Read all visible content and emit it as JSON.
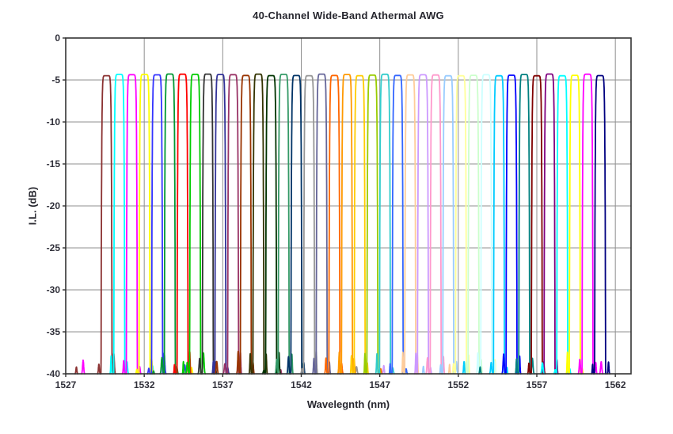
{
  "chart_data": {
    "type": "line",
    "title": "40-Channel Wide-Band Athermal AWG",
    "xlabel": "Wavelegnth (nm)",
    "ylabel": "I.L. (dB)",
    "xlim": [
      1527,
      1563
    ],
    "ylim": [
      -40,
      0
    ],
    "x_ticks": [
      1527,
      1532,
      1537,
      1542,
      1547,
      1552,
      1557,
      1562
    ],
    "y_ticks": [
      0,
      -5,
      -10,
      -15,
      -20,
      -25,
      -30,
      -35,
      -40
    ],
    "grid": true,
    "legend": "none",
    "colors": {
      "background": "#ffffff",
      "grid": "#8f8f8f",
      "axis": "#333333",
      "text": "#30303a"
    },
    "channel_count": 40,
    "channel_spacing_nm": 0.806,
    "passband": {
      "peak_il_db": -4.4,
      "floor_db": -40,
      "half_width_at_floor_nm": 0.35,
      "supergauss_exponent": 10
    },
    "channels": [
      {
        "ch": 1,
        "center_nm": 1529.6,
        "color": "#8B3232"
      },
      {
        "ch": 2,
        "center_nm": 1530.41,
        "color": "#00FFFF"
      },
      {
        "ch": 3,
        "center_nm": 1531.21,
        "color": "#FF00FF"
      },
      {
        "ch": 4,
        "center_nm": 1532.02,
        "color": "#FFFF00"
      },
      {
        "ch": 5,
        "center_nm": 1532.82,
        "color": "#3333FF"
      },
      {
        "ch": 6,
        "center_nm": 1533.63,
        "color": "#009933"
      },
      {
        "ch": 7,
        "center_nm": 1534.44,
        "color": "#FF0000"
      },
      {
        "ch": 8,
        "center_nm": 1535.24,
        "color": "#00CC00"
      },
      {
        "ch": 9,
        "center_nm": 1536.05,
        "color": "#333333"
      },
      {
        "ch": 10,
        "center_nm": 1536.85,
        "color": "#333399"
      },
      {
        "ch": 11,
        "center_nm": 1537.66,
        "color": "#993366"
      },
      {
        "ch": 12,
        "center_nm": 1538.47,
        "color": "#993300"
      },
      {
        "ch": 13,
        "center_nm": 1539.27,
        "color": "#333300"
      },
      {
        "ch": 14,
        "center_nm": 1540.08,
        "color": "#003300"
      },
      {
        "ch": 15,
        "center_nm": 1540.88,
        "color": "#339966"
      },
      {
        "ch": 16,
        "center_nm": 1541.69,
        "color": "#003366"
      },
      {
        "ch": 17,
        "center_nm": 1542.5,
        "color": "#969696"
      },
      {
        "ch": 18,
        "center_nm": 1543.3,
        "color": "#666699"
      },
      {
        "ch": 19,
        "center_nm": 1544.11,
        "color": "#FF6600"
      },
      {
        "ch": 20,
        "center_nm": 1544.91,
        "color": "#FF9900"
      },
      {
        "ch": 21,
        "center_nm": 1545.72,
        "color": "#FFCC00"
      },
      {
        "ch": 22,
        "center_nm": 1546.53,
        "color": "#99CC00"
      },
      {
        "ch": 23,
        "center_nm": 1547.33,
        "color": "#33CCCC"
      },
      {
        "ch": 24,
        "center_nm": 1548.14,
        "color": "#3366FF"
      },
      {
        "ch": 25,
        "center_nm": 1548.94,
        "color": "#FFCC99"
      },
      {
        "ch": 26,
        "center_nm": 1549.75,
        "color": "#CC99FF"
      },
      {
        "ch": 27,
        "center_nm": 1550.56,
        "color": "#FF99CC"
      },
      {
        "ch": 28,
        "center_nm": 1551.36,
        "color": "#99CCFF"
      },
      {
        "ch": 29,
        "center_nm": 1552.17,
        "color": "#FFFF99"
      },
      {
        "ch": 30,
        "center_nm": 1552.97,
        "color": "#CCFFCC"
      },
      {
        "ch": 31,
        "center_nm": 1553.78,
        "color": "#CCFFFF"
      },
      {
        "ch": 32,
        "center_nm": 1554.59,
        "color": "#00CCFF"
      },
      {
        "ch": 33,
        "center_nm": 1555.39,
        "color": "#0000FF"
      },
      {
        "ch": 34,
        "center_nm": 1556.2,
        "color": "#008080"
      },
      {
        "ch": 35,
        "center_nm": 1557.0,
        "color": "#800000"
      },
      {
        "ch": 36,
        "center_nm": 1557.81,
        "color": "#800080"
      },
      {
        "ch": 37,
        "center_nm": 1558.62,
        "color": "#00FFFF"
      },
      {
        "ch": 38,
        "center_nm": 1559.42,
        "color": "#FFFF00"
      },
      {
        "ch": 39,
        "center_nm": 1560.23,
        "color": "#FF00FF"
      },
      {
        "ch": 40,
        "center_nm": 1561.03,
        "color": "#000080"
      }
    ]
  }
}
